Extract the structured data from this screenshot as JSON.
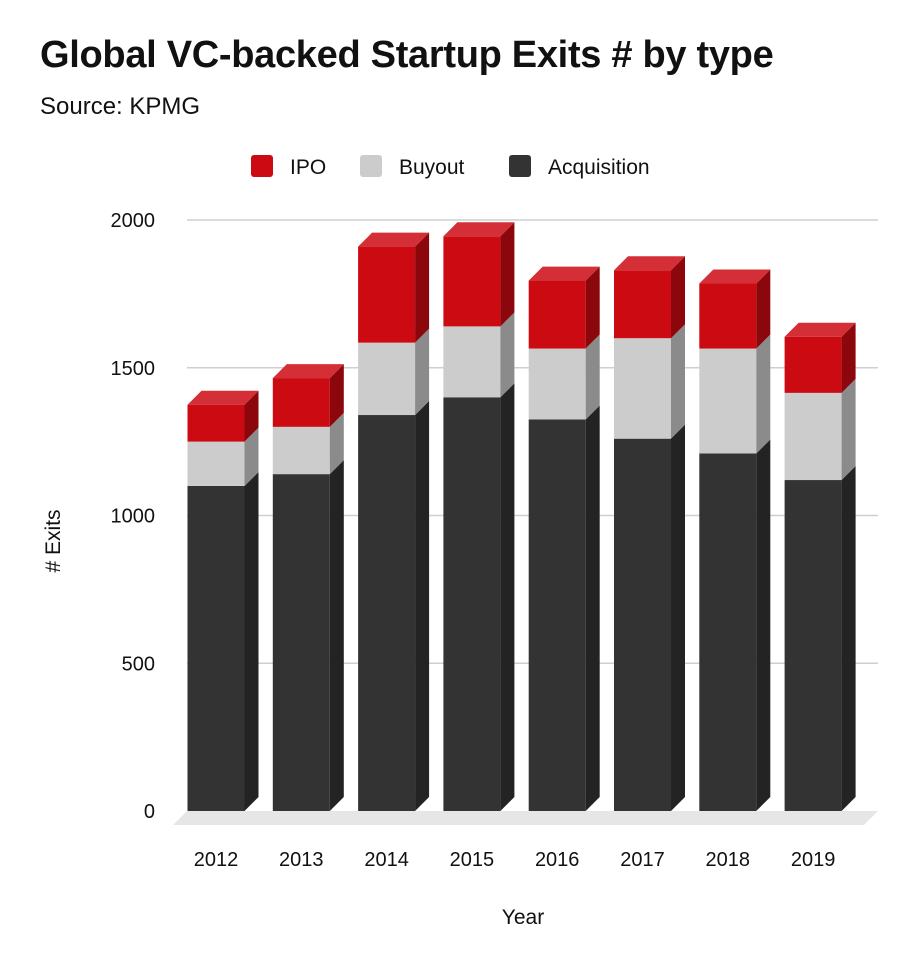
{
  "title": "Global VC-backed Startup Exits # by type",
  "subtitle": "Source: KPMG",
  "colors": {
    "ipo": "#cc0a12",
    "buyout": "#cccccc",
    "acquisition": "#333333",
    "grid": "#cfcfcf",
    "floor": "#e6e6e6"
  },
  "chart_data": {
    "type": "bar",
    "stacked": true,
    "three_d": true,
    "categories": [
      "2012",
      "2013",
      "2014",
      "2015",
      "2016",
      "2017",
      "2018",
      "2019"
    ],
    "series": [
      {
        "name": "Acquisition",
        "color": "#333333",
        "values": [
          1100,
          1140,
          1340,
          1400,
          1325,
          1260,
          1210,
          1120
        ]
      },
      {
        "name": "Buyout",
        "color": "#cccccc",
        "values": [
          150,
          160,
          245,
          240,
          240,
          340,
          355,
          295
        ]
      },
      {
        "name": "IPO",
        "color": "#cc0a12",
        "values": [
          125,
          165,
          325,
          305,
          230,
          230,
          220,
          190
        ]
      }
    ],
    "legend_order": [
      "IPO",
      "Buyout",
      "Acquisition"
    ],
    "legend_position": "top",
    "xlabel": "Year",
    "ylabel": "# Exits",
    "ylim": [
      0,
      2000
    ],
    "yticks": [
      0,
      500,
      1000,
      1500,
      2000
    ],
    "grid": true
  }
}
